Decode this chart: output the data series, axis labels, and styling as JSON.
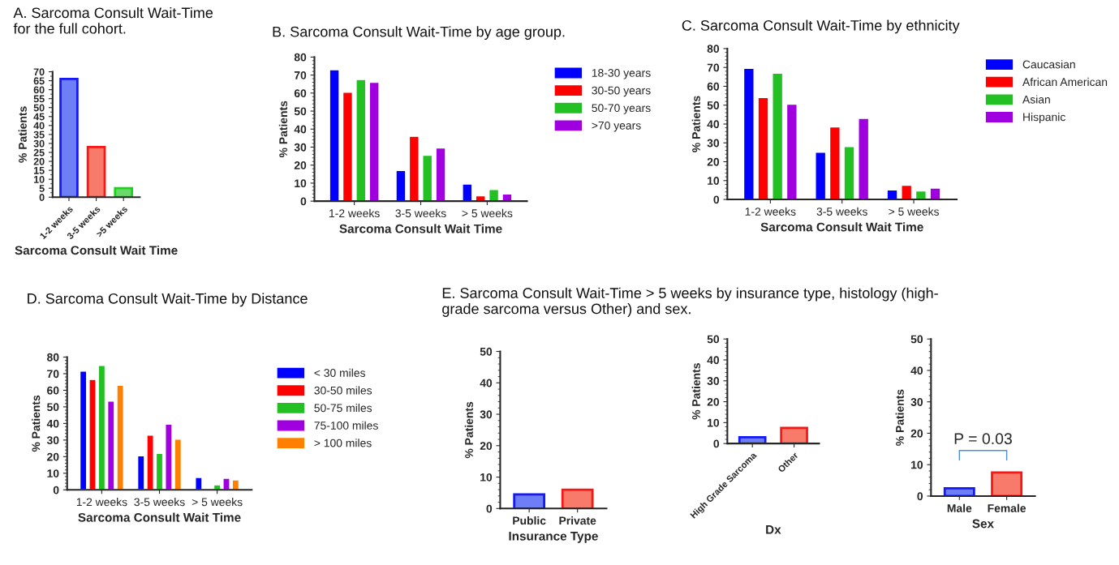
{
  "chart_data": [
    {
      "type": "bar",
      "title": "A. Sarcoma Consult Wait-Time\nfor the full cohort.",
      "xlabel": "Sarcoma Consult Wait Time",
      "ylabel": "% Patients",
      "categories": [
        "1-2 weeks",
        "3-5 weeks",
        ">5 weeks"
      ],
      "values": [
        66,
        28,
        5
      ],
      "colors": [
        "#6e7ef7",
        "#f77a6a",
        "#6ad86a"
      ],
      "ylim": [
        0,
        70
      ],
      "yticks": [
        0,
        5,
        10,
        15,
        20,
        25,
        30,
        35,
        40,
        45,
        50,
        55,
        60,
        65,
        70
      ],
      "grid": false,
      "legend": false
    },
    {
      "type": "bar",
      "title": "B. Sarcoma Consult Wait-Time by age group.",
      "xlabel": "Sarcoma Consult Wait Time",
      "ylabel": "% Patients",
      "categories": [
        "1-2 weeks",
        "3-5 weeks",
        "> 5 weeks"
      ],
      "series": [
        {
          "name": "18-30 years",
          "color": "#0000ff",
          "values": [
            73,
            17,
            9.5
          ]
        },
        {
          "name": "30-50 years",
          "color": "#ff0000",
          "values": [
            60.5,
            36,
            3
          ]
        },
        {
          "name": "50-70 years",
          "color": "#22c022",
          "values": [
            67.5,
            25.5,
            6.5
          ]
        },
        {
          "name": ">70 years",
          "color": "#a000e0",
          "values": [
            66,
            29.5,
            4
          ]
        }
      ],
      "ylim": [
        0,
        80
      ],
      "yticks": [
        0,
        10,
        20,
        30,
        40,
        50,
        60,
        70,
        80
      ],
      "grid": false,
      "legend": "right"
    },
    {
      "type": "bar",
      "title": "C. Sarcoma Consult Wait-Time by ethnicity",
      "xlabel": "Sarcoma Consult Wait Time",
      "ylabel": "% Patients",
      "categories": [
        "1-2 weeks",
        "3-5 weeks",
        "> 5 weeks"
      ],
      "series": [
        {
          "name": "Caucasian",
          "color": "#0000ff",
          "values": [
            69.5,
            25,
            5
          ]
        },
        {
          "name": "African American",
          "color": "#ff0000",
          "values": [
            54,
            38.5,
            7.5
          ]
        },
        {
          "name": "Asian",
          "color": "#22c022",
          "values": [
            67,
            28,
            4.5
          ]
        },
        {
          "name": "Hispanic",
          "color": "#a000e0",
          "values": [
            50.5,
            43,
            6
          ]
        }
      ],
      "ylim": [
        0,
        80
      ],
      "yticks": [
        0,
        10,
        20,
        30,
        40,
        50,
        60,
        70,
        80
      ],
      "grid": false,
      "legend": "right"
    },
    {
      "type": "bar",
      "title": "D. Sarcoma Consult Wait-Time by Distance",
      "xlabel": "Sarcoma Consult Wait Time",
      "ylabel": "% Patients",
      "categories": [
        "1-2 weeks",
        "3-5 weeks",
        "> 5 weeks"
      ],
      "series": [
        {
          "name": "< 30 miles",
          "color": "#0000ff",
          "values": [
            71.5,
            20.5,
            7.5
          ]
        },
        {
          "name": "30-50 miles",
          "color": "#ff0000",
          "values": [
            66.5,
            33,
            null
          ]
        },
        {
          "name": "50-75 miles",
          "color": "#22c022",
          "values": [
            75,
            22,
            3
          ]
        },
        {
          "name": "75-100 miles",
          "color": "#a000e0",
          "values": [
            53.5,
            39.5,
            7
          ]
        },
        {
          "name": "> 100 miles",
          "color": "#ff8000",
          "values": [
            63,
            30.5,
            6
          ]
        }
      ],
      "ylim": [
        0,
        80
      ],
      "yticks": [
        0,
        10,
        20,
        30,
        40,
        50,
        60,
        70,
        80
      ],
      "grid": false,
      "legend": "right"
    },
    {
      "type": "bar",
      "title": "E. Sarcoma Consult Wait-Time > 5 weeks by insurance type, histology (high-\ngrade sarcoma versus Other) and sex.",
      "xlabel": "Insurance Type",
      "ylabel": "% Patients",
      "categories": [
        "Public",
        "Private"
      ],
      "values": [
        4.5,
        6
      ],
      "colors": [
        "#6e7ef7",
        "#f77a6a"
      ],
      "ylim": [
        0,
        50
      ],
      "yticks": [
        0,
        10,
        20,
        30,
        40,
        50
      ],
      "grid": false,
      "legend": false
    },
    {
      "type": "bar",
      "xlabel": "Dx",
      "ylabel": "% Patients",
      "categories": [
        "High Grade Sarcoma",
        "Other"
      ],
      "values": [
        3,
        7.5
      ],
      "colors": [
        "#6e7ef7",
        "#f77a6a"
      ],
      "ylim": [
        0,
        50
      ],
      "yticks": [
        0,
        10,
        20,
        30,
        40,
        50
      ],
      "grid": false,
      "legend": false
    },
    {
      "type": "bar",
      "xlabel": "Sex",
      "ylabel": "% Patients",
      "categories": [
        "Male",
        "Female"
      ],
      "values": [
        2.5,
        7.5
      ],
      "colors": [
        "#6e7ef7",
        "#f77a6a"
      ],
      "ylim": [
        0,
        50
      ],
      "yticks": [
        0,
        10,
        20,
        30,
        40,
        50
      ],
      "grid": false,
      "legend": false,
      "annotations": [
        "P = 0.03"
      ]
    }
  ]
}
